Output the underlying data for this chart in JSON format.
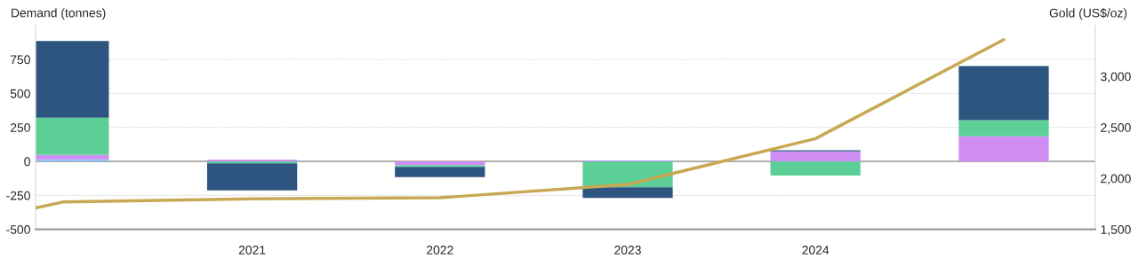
{
  "chart_data": {
    "type": "bar",
    "stacked": true,
    "ylabel": "Demand (tonnes)",
    "y2label": "Gold (US$/oz)",
    "x": [
      "2020",
      "2021",
      "2022",
      "2023",
      "2024",
      "2025"
    ],
    "series": [
      {
        "color": "#8fc1f5",
        "values": [
          15,
          null,
          null,
          null,
          null,
          null
        ]
      },
      {
        "color": "#d08ef5",
        "values": [
          32,
          14,
          -28,
          7,
          74,
          184
        ]
      },
      {
        "color": "#5ccf97",
        "values": [
          275,
          -15,
          -13,
          -190,
          -104,
          119
        ]
      },
      {
        "color": "#2e557f",
        "values": [
          563,
          -198,
          -74,
          -78,
          7,
          398
        ]
      },
      {
        "type": "line",
        "axis": "y2",
        "color": "#c8a853",
        "x": [
          "2019-11-07",
          "2020",
          "2021",
          "2022",
          "2023",
          "2024",
          "2025"
        ],
        "values": [
          1710,
          1770,
          1800,
          1810,
          1940,
          2390,
          3360
        ]
      }
    ],
    "xlim": [
      "2019-11-07",
      "2025-06-28"
    ],
    "xticks": [
      {
        "value": "2021",
        "label": "2021"
      },
      {
        "value": "2022",
        "label": "2022"
      },
      {
        "value": "2023",
        "label": "2023"
      },
      {
        "value": "2024",
        "label": "2024"
      }
    ],
    "ylim": [
      -500,
      1000
    ],
    "yticks": [
      -500,
      -250,
      0,
      250,
      500,
      750
    ],
    "y2lim": [
      1500,
      3500
    ],
    "y2ticks": [
      {
        "value": 1500,
        "label": "1,500"
      },
      {
        "value": 2000,
        "label": "2,000"
      },
      {
        "value": 2500,
        "label": "2,500"
      },
      {
        "value": 3000,
        "label": "3,000"
      }
    ],
    "ref_lines": [
      {
        "axis": "y",
        "value": 0,
        "color": "#999999"
      }
    ],
    "grid": "y"
  }
}
